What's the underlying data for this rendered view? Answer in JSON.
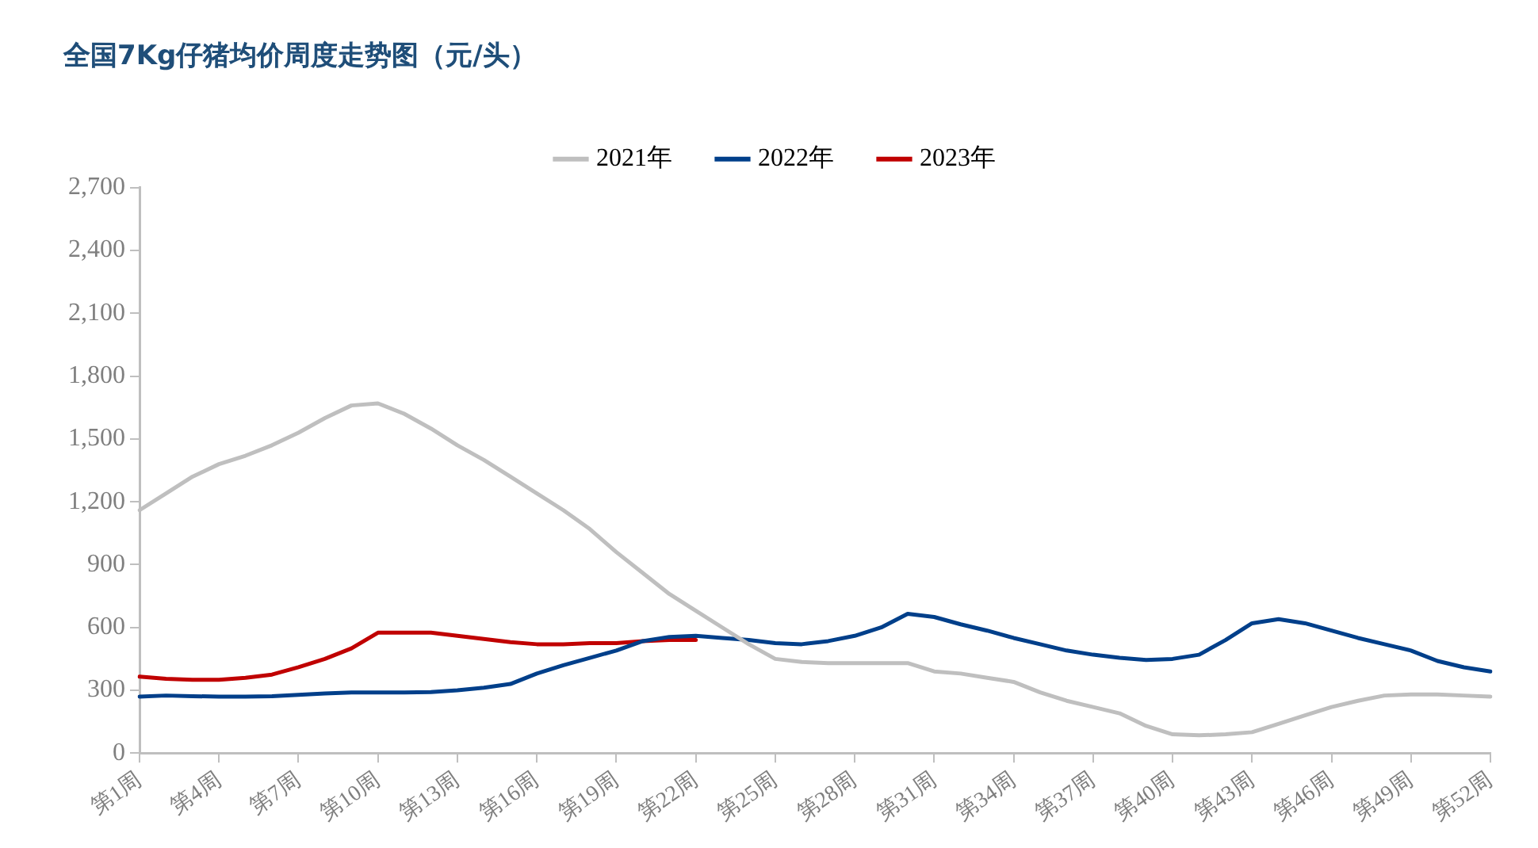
{
  "chart_data": {
    "type": "line",
    "title": "全国7Kg仔猪均价周度走势图（元/头）",
    "categories": [
      "第1周",
      null,
      null,
      "第4周",
      null,
      null,
      "第7周",
      null,
      null,
      "第10周",
      null,
      null,
      "第13周",
      null,
      null,
      "第16周",
      null,
      null,
      "第19周",
      null,
      null,
      "第22周",
      null,
      null,
      "第25周",
      null,
      null,
      "第28周",
      null,
      null,
      "第31周",
      null,
      null,
      "第34周",
      null,
      null,
      "第37周",
      null,
      null,
      "第40周",
      null,
      null,
      "第43周",
      null,
      null,
      "第46周",
      null,
      null,
      "第49周",
      null,
      null,
      "第52周"
    ],
    "series": [
      {
        "name": "2021年",
        "color": "#bfbfbf",
        "values": [
          1160,
          1240,
          1320,
          1380,
          1420,
          1470,
          1530,
          1600,
          1660,
          1670,
          1620,
          1550,
          1470,
          1400,
          1320,
          1240,
          1160,
          1070,
          960,
          860,
          760,
          680,
          600,
          520,
          450,
          435,
          430,
          430,
          430,
          430,
          390,
          380,
          360,
          340,
          290,
          250,
          220,
          190,
          130,
          90,
          85,
          90,
          100,
          140,
          180,
          220,
          250,
          275,
          280,
          280,
          275,
          270
        ]
      },
      {
        "name": "2022年",
        "color": "#003f8a",
        "values": [
          270,
          275,
          272,
          270,
          270,
          272,
          278,
          285,
          290,
          290,
          290,
          292,
          300,
          312,
          330,
          380,
          420,
          455,
          490,
          535,
          555,
          560,
          550,
          540,
          525,
          520,
          535,
          560,
          600,
          665,
          650,
          615,
          585,
          550,
          520,
          490,
          470,
          455,
          445,
          450,
          470,
          540,
          620,
          640,
          620,
          585,
          550,
          520,
          490,
          440,
          410,
          390
        ]
      },
      {
        "name": "2023年",
        "color": "#c00000",
        "values": [
          365,
          355,
          350,
          350,
          360,
          375,
          410,
          450,
          500,
          575,
          575,
          575,
          560,
          545,
          530,
          520,
          520,
          525,
          525,
          535,
          540,
          540,
          null,
          null,
          null,
          null,
          null,
          null,
          null,
          null,
          null,
          null,
          null,
          null,
          null,
          null,
          null,
          null,
          null,
          null,
          null,
          null,
          null,
          null,
          null,
          null,
          null,
          null,
          null,
          null,
          null,
          null
        ]
      }
    ],
    "ylim": [
      0,
      2700
    ],
    "yticks": [
      0,
      300,
      600,
      900,
      {
        "value": 1200,
        "label": "1,200"
      },
      {
        "value": 1500,
        "label": "1,500"
      },
      {
        "value": 1800,
        "label": "1,800"
      },
      {
        "value": 2100,
        "label": "2,100"
      },
      {
        "value": 2400,
        "label": "2,400"
      },
      {
        "value": 2700,
        "label": "2,700"
      }
    ],
    "grid": false,
    "legend": "top",
    "marker": "none",
    "line_style": "solid"
  }
}
